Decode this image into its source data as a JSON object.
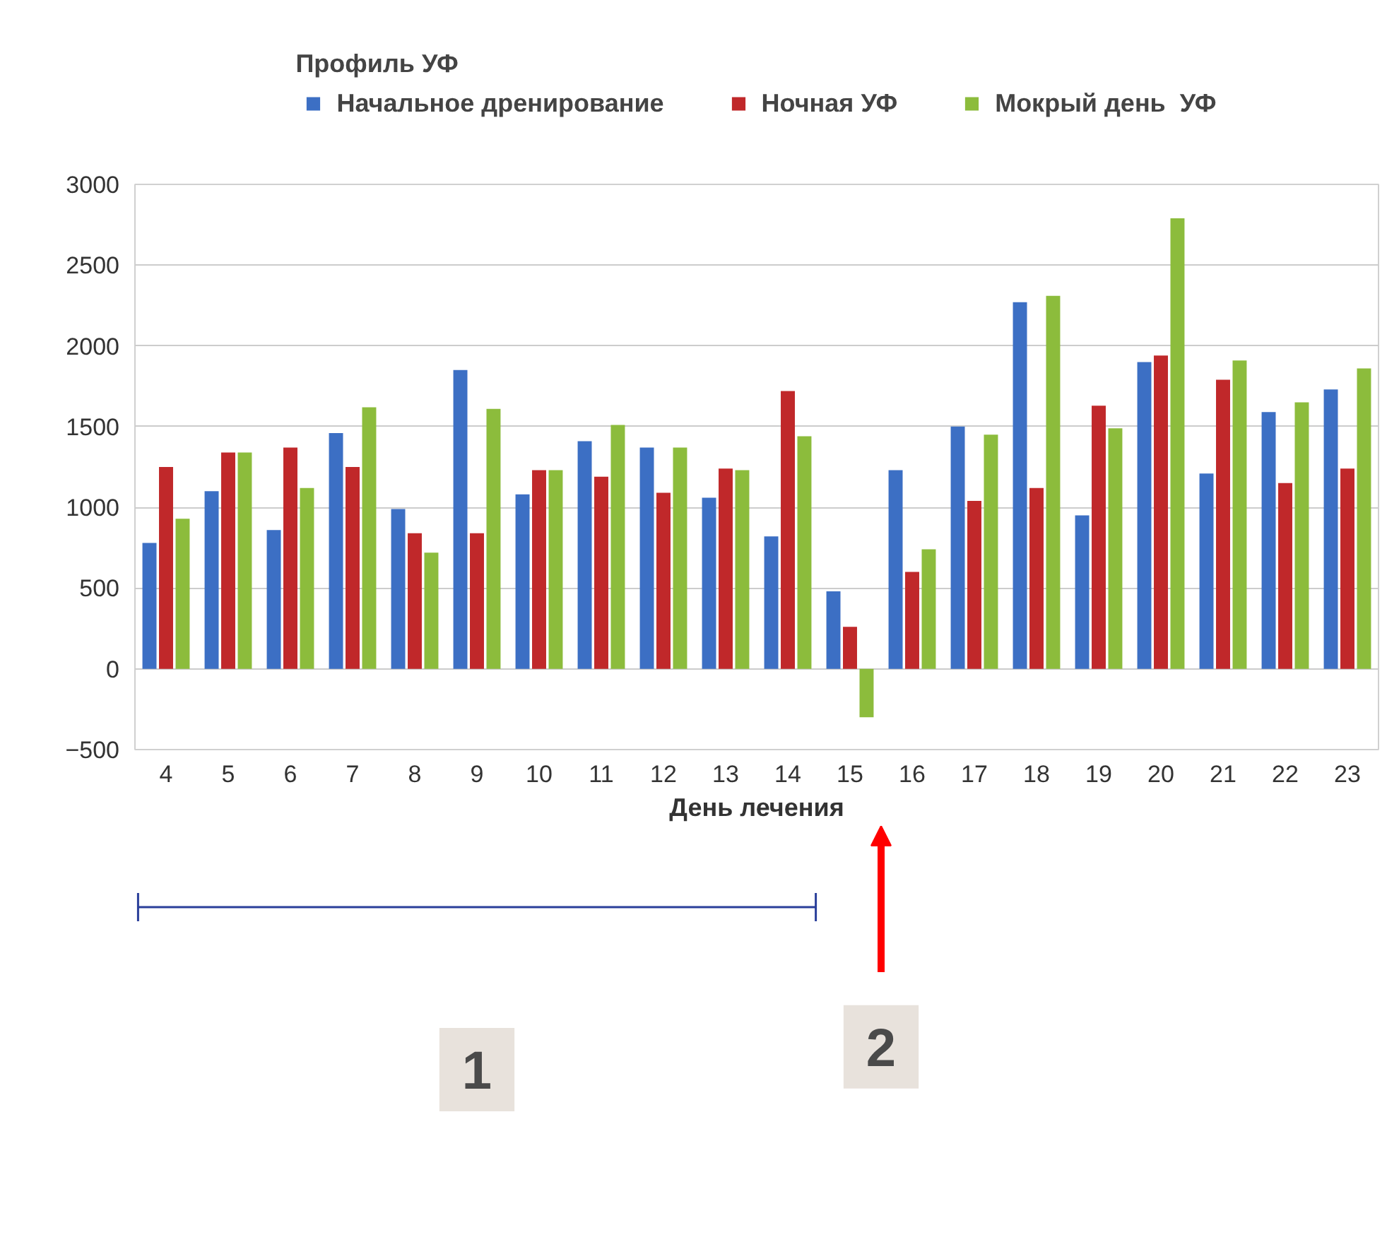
{
  "chart_data": {
    "type": "bar",
    "legend_title": "Профиль УФ",
    "xlabel": "День лечения",
    "categories": [
      "4",
      "5",
      "6",
      "7",
      "8",
      "9",
      "10",
      "11",
      "12",
      "13",
      "14",
      "15",
      "16",
      "17",
      "18",
      "19",
      "20",
      "21",
      "22",
      "23"
    ],
    "series": [
      {
        "name": "Начальное дренирование",
        "color": "#3c6fc4",
        "values": [
          780,
          1100,
          860,
          1460,
          990,
          1850,
          1080,
          1410,
          1370,
          1060,
          820,
          480,
          1230,
          1500,
          2270,
          950,
          1900,
          1210,
          1590,
          1730
        ]
      },
      {
        "name": "Ночная УФ",
        "color": "#c0282a",
        "values": [
          1250,
          1340,
          1370,
          1250,
          840,
          840,
          1230,
          1190,
          1090,
          1240,
          1720,
          260,
          600,
          1040,
          1120,
          1630,
          1940,
          1790,
          1150,
          1240
        ]
      },
      {
        "name": "Мокрый день  УФ",
        "color": "#8cbc3c",
        "values": [
          930,
          1340,
          1120,
          1620,
          720,
          1610,
          1230,
          1510,
          1370,
          1230,
          1440,
          -300,
          740,
          1450,
          2310,
          1490,
          2790,
          1910,
          1650,
          1860
        ]
      }
    ],
    "ylim": [
      -500,
      3000
    ],
    "yticks": [
      -500,
      0,
      500,
      1000,
      1500,
      2000,
      2500,
      3000
    ],
    "grid": "y",
    "legend": "top",
    "annotations": [
      "1",
      "2"
    ]
  }
}
